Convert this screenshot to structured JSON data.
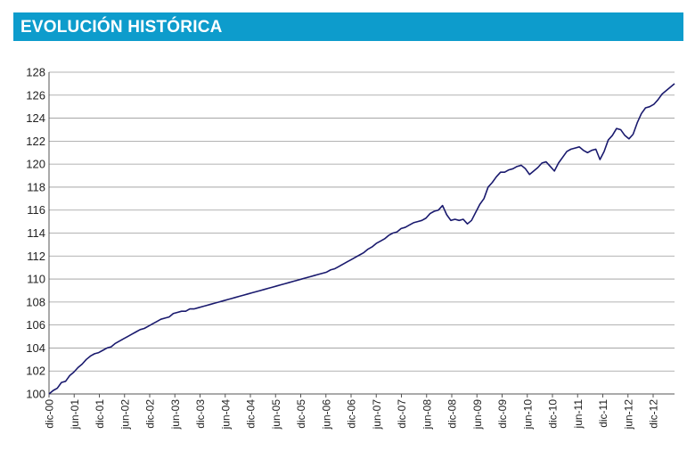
{
  "header": {
    "title": "EVOLUCIÓN HISTÓRICA"
  },
  "chart_data": {
    "type": "line",
    "title": "EVOLUCIÓN HISTÓRICA",
    "xlabel": "",
    "ylabel": "",
    "ylim": [
      100,
      128
    ],
    "yticks": [
      100,
      102,
      104,
      106,
      108,
      110,
      112,
      114,
      116,
      118,
      120,
      122,
      124,
      126,
      128
    ],
    "xticks": [
      "dic-00",
      "jun-01",
      "dic-01",
      "jun-02",
      "dic-02",
      "jun-03",
      "dic-03",
      "jun-04",
      "dic-04",
      "jun-05",
      "dic-05",
      "jun-06",
      "dic-06",
      "jun-07",
      "dic-07",
      "jun-08",
      "dic-08",
      "jun-09",
      "dic-09",
      "jun-10",
      "dic-10",
      "jun-11",
      "dic-11",
      "jun-12",
      "dic-12"
    ],
    "grid": "horizontal",
    "line_color": "#1a1a6e",
    "x_start": "dic-00",
    "x_end": "may-13",
    "series": [
      {
        "values": [
          100.0,
          100.3,
          100.5,
          101.0,
          101.1,
          101.6,
          101.9,
          102.3,
          102.6,
          103.0,
          103.3,
          103.5,
          103.6,
          103.8,
          104.0,
          104.1,
          104.4,
          104.6,
          104.8,
          105.0,
          105.2,
          105.4,
          105.6,
          105.7,
          105.9,
          106.1,
          106.3,
          106.5,
          106.6,
          106.7,
          107.0,
          107.1,
          107.2,
          107.2,
          107.4,
          107.4,
          107.5,
          107.6,
          107.7,
          107.8,
          107.9,
          108.0,
          108.1,
          108.2,
          108.3,
          108.4,
          108.5,
          108.6,
          108.7,
          108.8,
          108.9,
          109.0,
          109.1,
          109.2,
          109.3,
          109.4,
          109.5,
          109.6,
          109.7,
          109.8,
          109.9,
          110.0,
          110.1,
          110.2,
          110.3,
          110.4,
          110.5,
          110.6,
          110.8,
          110.9,
          111.1,
          111.3,
          111.5,
          111.7,
          111.9,
          112.1,
          112.3,
          112.6,
          112.8,
          113.1,
          113.3,
          113.5,
          113.8,
          114.0,
          114.1,
          114.4,
          114.5,
          114.7,
          114.9,
          115.0,
          115.1,
          115.3,
          115.7,
          115.9,
          116.0,
          116.4,
          115.6,
          115.1,
          115.2,
          115.1,
          115.2,
          114.8,
          115.1,
          115.8,
          116.5,
          117.0,
          118.0,
          118.4,
          118.9,
          119.3,
          119.3,
          119.5,
          119.6,
          119.8,
          119.9,
          119.6,
          119.1,
          119.4,
          119.7,
          120.1,
          120.2,
          119.8,
          119.4,
          120.1,
          120.6,
          121.1,
          121.3,
          121.4,
          121.5,
          121.2,
          121.0,
          121.2,
          121.3,
          120.4,
          121.1,
          122.1,
          122.5,
          123.1,
          123.0,
          122.5,
          122.2,
          122.6,
          123.6,
          124.4,
          124.9,
          125.0,
          125.2,
          125.6,
          126.1,
          126.4,
          126.7,
          127.0
        ]
      }
    ]
  }
}
